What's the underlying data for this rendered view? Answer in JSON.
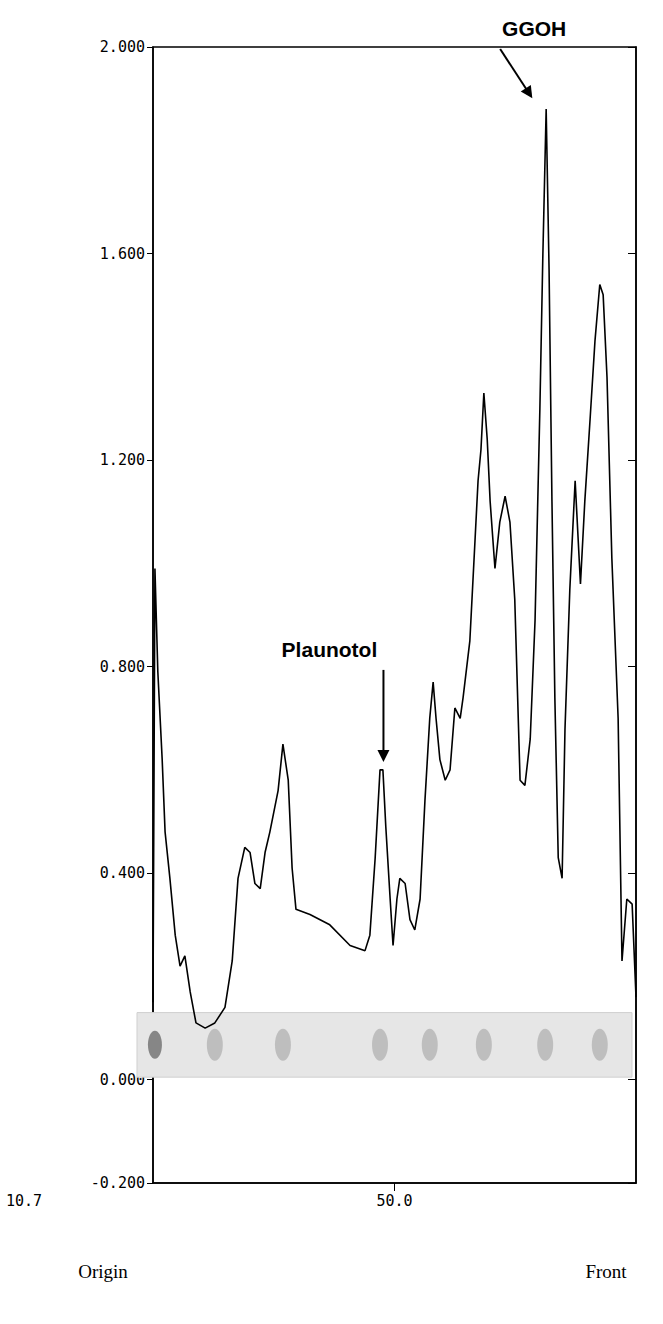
{
  "chart_data": {
    "type": "line",
    "color": "#000000",
    "x": [
      0.0,
      0.4,
      1.0,
      1.9,
      2.5,
      3.5,
      4.6,
      5.6,
      6.6,
      7.7,
      8.9,
      10.8,
      12.8,
      14.9,
      16.4,
      17.6,
      19.0,
      20.1,
      21.1,
      22.2,
      23.2,
      24.2,
      25.9,
      26.9,
      28.0,
      28.8,
      29.6,
      32.5,
      36.6,
      40.8,
      43.9,
      44.9,
      46.0,
      47.0,
      47.6,
      48.2,
      49.1,
      49.7,
      50.5,
      51.1,
      52.2,
      53.2,
      54.2,
      55.3,
      56.3,
      57.3,
      58.0,
      58.6,
      59.4,
      60.5,
      61.5,
      62.5,
      63.6,
      64.2,
      65.6,
      66.7,
      67.3,
      67.9,
      68.5,
      69.2,
      69.8,
      70.8,
      71.8,
      72.9,
      73.9,
      74.9,
      76.0,
      77.0,
      78.1,
      79.1,
      80.1,
      80.7,
      81.4,
      82.0,
      82.6,
      83.2,
      83.9,
      84.7,
      85.3,
      86.3,
      87.4,
      88.5,
      89.4,
      90.5,
      91.5,
      92.5,
      93.2,
      94.0,
      95.0,
      96.3,
      97.1,
      98.1,
      99.2,
      100.0
    ],
    "values": [
      0.15,
      0.99,
      0.79,
      0.62,
      0.48,
      0.39,
      0.28,
      0.22,
      0.24,
      0.17,
      0.11,
      0.1,
      0.11,
      0.14,
      0.23,
      0.39,
      0.45,
      0.44,
      0.38,
      0.37,
      0.44,
      0.48,
      0.56,
      0.65,
      0.58,
      0.41,
      0.33,
      0.32,
      0.3,
      0.26,
      0.25,
      0.28,
      0.43,
      0.6,
      0.6,
      0.49,
      0.35,
      0.26,
      0.35,
      0.39,
      0.38,
      0.31,
      0.29,
      0.35,
      0.54,
      0.7,
      0.77,
      0.7,
      0.62,
      0.58,
      0.6,
      0.72,
      0.7,
      0.74,
      0.85,
      1.05,
      1.16,
      1.22,
      1.33,
      1.24,
      1.12,
      0.99,
      1.08,
      1.13,
      1.08,
      0.93,
      0.58,
      0.57,
      0.66,
      0.89,
      1.3,
      1.59,
      1.88,
      1.57,
      1.12,
      0.74,
      0.43,
      0.39,
      0.68,
      0.95,
      1.16,
      0.96,
      1.12,
      1.28,
      1.43,
      1.54,
      1.52,
      1.36,
      1.01,
      0.7,
      0.23,
      0.35,
      0.34,
      0.16
    ],
    "xlim": [
      0,
      100
    ],
    "xticks": [
      {
        "value": 50,
        "label": "50.0"
      }
    ],
    "ylim": [
      -0.2,
      2.0
    ],
    "yticks": [
      {
        "value": -0.2,
        "label": "-0.200"
      },
      {
        "value": 0,
        "label": "0.000"
      },
      {
        "value": 0.4,
        "label": "0.400"
      },
      {
        "value": 0.8,
        "label": "0.800"
      },
      {
        "value": 1.2,
        "label": "1.200"
      },
      {
        "value": 1.6,
        "label": "1.600"
      },
      {
        "value": 2.0,
        "label": "2.000"
      }
    ],
    "grid": false,
    "annotations": [
      {
        "text": "Plaunotol",
        "x": 47.3,
        "y": 0.6
      },
      {
        "text": "GGOH",
        "x": 81.4,
        "y": 1.88
      },
      {
        "text": "Origin",
        "x": 0
      },
      {
        "text": "Front",
        "x": 100
      },
      {
        "text": "10.7"
      }
    ],
    "tlc_spots": [
      0.4,
      12.8,
      26.9,
      47.0,
      57.3,
      68.5,
      81.2,
      92.5
    ]
  }
}
